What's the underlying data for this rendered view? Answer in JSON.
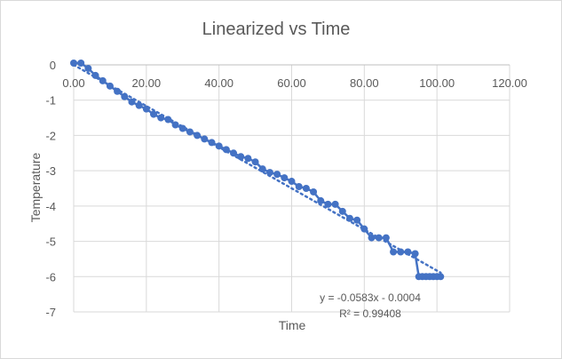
{
  "chart_data": {
    "type": "scatter",
    "title": "Linearized vs Time",
    "xlabel": "Time",
    "ylabel": "Temperature",
    "xlim": [
      0,
      120
    ],
    "ylim": [
      -7,
      0
    ],
    "x_ticks": [
      "0.00",
      "20.00",
      "40.00",
      "60.00",
      "80.00",
      "100.00",
      "120.00"
    ],
    "y_ticks": [
      "0",
      "-1",
      "-2",
      "-3",
      "-4",
      "-5",
      "-6",
      "-7"
    ],
    "grid": true,
    "legend": "none",
    "series_color": "#4472c4",
    "series": [
      {
        "x": [
          0,
          2,
          4,
          6,
          8,
          10,
          12,
          14,
          16,
          18,
          20,
          22,
          24,
          26,
          28,
          30,
          32,
          34,
          36,
          38,
          40,
          42,
          44,
          46,
          48,
          50,
          52,
          54,
          56,
          58,
          60,
          62,
          64,
          66,
          68,
          70,
          72,
          74,
          76,
          78,
          80,
          82,
          84,
          86,
          88,
          90,
          92,
          94,
          95,
          96,
          97,
          98,
          99,
          100,
          101
        ],
        "y": [
          0.05,
          0.05,
          -0.1,
          -0.3,
          -0.45,
          -0.6,
          -0.75,
          -0.9,
          -1.05,
          -1.15,
          -1.25,
          -1.4,
          -1.5,
          -1.55,
          -1.7,
          -1.8,
          -1.9,
          -2.0,
          -2.1,
          -2.2,
          -2.3,
          -2.4,
          -2.5,
          -2.6,
          -2.65,
          -2.75,
          -2.95,
          -3.05,
          -3.1,
          -3.2,
          -3.3,
          -3.45,
          -3.5,
          -3.6,
          -3.85,
          -3.95,
          -3.95,
          -4.15,
          -4.35,
          -4.4,
          -4.65,
          -4.9,
          -4.9,
          -4.9,
          -5.3,
          -5.3,
          -5.3,
          -5.35,
          -6.0,
          -6.0,
          -6.0,
          -6.0,
          -6.0,
          -6.0,
          -6.0
        ]
      }
    ],
    "trendline": {
      "slope": -0.0583,
      "intercept": -0.0004,
      "x_range": [
        0,
        101
      ],
      "equation": "y = -0.0583x - 0.0004",
      "r_squared": "R² = 0.99408"
    }
  }
}
